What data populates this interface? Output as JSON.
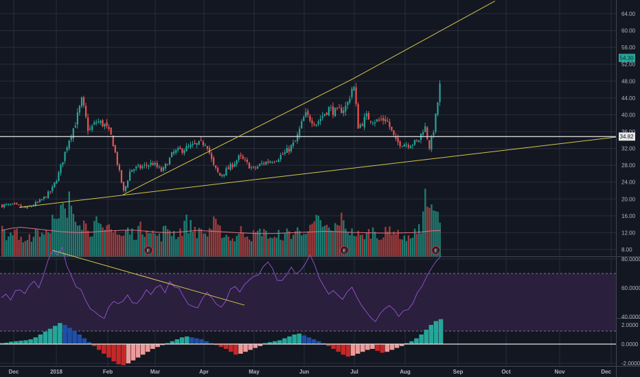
{
  "chart_data": [
    {
      "type": "candlestick",
      "pane": "price",
      "ylim": [
        6,
        68
      ],
      "y_ticks": [
        8,
        12,
        16,
        20,
        24,
        28,
        32,
        36,
        40,
        44,
        48,
        52,
        56,
        60,
        64
      ],
      "y_tick_labels": [
        "8.00",
        "12.00",
        "16.00",
        "20.00",
        "24.00",
        "28.00",
        "32.00",
        "36.00",
        "40.00",
        "44.00",
        "48.00",
        "52.00",
        "56.00",
        "60.00",
        "64.00"
      ],
      "x_tick_labels": [
        "Dec",
        "2018",
        "Feb",
        "Mar",
        "Apr",
        "May",
        "Jun",
        "Jul",
        "Aug",
        "Sep",
        "Oct",
        "Nov",
        "Dec"
      ],
      "last_price_label": "54.30",
      "horizontal_level_label": "34.82",
      "horizontal_level": 34.82,
      "close_path": [
        [
          "2017-12-01",
          18.5
        ],
        [
          "2017-12-10",
          17.8
        ],
        [
          "2017-12-20",
          19.5
        ],
        [
          "2017-12-28",
          22.0
        ],
        [
          "2018-01-02",
          26.0
        ],
        [
          "2018-01-08",
          34.0
        ],
        [
          "2018-01-12",
          38.0
        ],
        [
          "2018-01-16",
          43.5
        ],
        [
          "2018-01-20",
          36.0
        ],
        [
          "2018-01-25",
          38.5
        ],
        [
          "2018-01-30",
          37.5
        ],
        [
          "2018-02-03",
          34.5
        ],
        [
          "2018-02-07",
          27.0
        ],
        [
          "2018-02-10",
          21.5
        ],
        [
          "2018-02-14",
          27.0
        ],
        [
          "2018-02-20",
          27.5
        ],
        [
          "2018-02-27",
          28.5
        ],
        [
          "2018-03-05",
          26.5
        ],
        [
          "2018-03-12",
          31.0
        ],
        [
          "2018-03-20",
          32.0
        ],
        [
          "2018-03-28",
          33.0
        ],
        [
          "2018-04-02",
          33.5
        ],
        [
          "2018-04-06",
          28.0
        ],
        [
          "2018-04-10",
          25.5
        ],
        [
          "2018-04-16",
          27.5
        ],
        [
          "2018-04-22",
          30.0
        ],
        [
          "2018-04-30",
          27.0
        ],
        [
          "2018-05-06",
          28.5
        ],
        [
          "2018-05-14",
          29.5
        ],
        [
          "2018-05-20",
          31.0
        ],
        [
          "2018-05-26",
          33.5
        ],
        [
          "2018-06-01",
          40.0
        ],
        [
          "2018-06-08",
          38.0
        ],
        [
          "2018-06-15",
          41.5
        ],
        [
          "2018-06-20",
          40.5
        ],
        [
          "2018-06-26",
          42.0
        ],
        [
          "2018-06-30",
          47.5
        ],
        [
          "2018-07-03",
          37.0
        ],
        [
          "2018-07-08",
          39.5
        ],
        [
          "2018-07-14",
          38.5
        ],
        [
          "2018-07-20",
          39.0
        ],
        [
          "2018-07-26",
          33.5
        ],
        [
          "2018-08-02",
          33.0
        ],
        [
          "2018-08-08",
          33.5
        ],
        [
          "2018-08-12",
          37.5
        ],
        [
          "2018-08-15",
          32.0
        ],
        [
          "2018-08-18",
          38.0
        ],
        [
          "2018-08-21",
          47.0
        ],
        [
          "2018-08-25",
          54.3
        ]
      ],
      "trendlines": [
        {
          "from": [
            "2018-02-10",
            21.0
          ],
          "to": [
            "2018-06-30",
            48.5
          ]
        },
        {
          "from": [
            "2017-12-05",
            18.0
          ],
          "to": [
            "2018-12-15",
            35.2
          ]
        },
        {
          "from": [
            "2018-06-30",
            48.5
          ],
          "to": [
            "2018-09-24",
            67.0
          ]
        }
      ],
      "earnings_markers": [
        "2018-02-25",
        "2018-06-25",
        "2018-08-19"
      ],
      "earnings_label": "E"
    },
    {
      "type": "bar",
      "pane": "volume",
      "series": [
        {
          "values": [
            12,
            10,
            9,
            11,
            8,
            7,
            10,
            9,
            13,
            11,
            12,
            14,
            17,
            15,
            22,
            19,
            25,
            21,
            18,
            16,
            14,
            12,
            15,
            13,
            11,
            14,
            16,
            12,
            10,
            9,
            12,
            11,
            10,
            13,
            12,
            14,
            11,
            10,
            9,
            12,
            13,
            11,
            10,
            12,
            16,
            14,
            13,
            11,
            12,
            10,
            13,
            15,
            12,
            11,
            10,
            9,
            8,
            10,
            12,
            11,
            9,
            10,
            11,
            12,
            10,
            9,
            8,
            10,
            9,
            11,
            10,
            12,
            11,
            13,
            12,
            14,
            16,
            15,
            13,
            12,
            11,
            14,
            17,
            15,
            12,
            11,
            10,
            9,
            10,
            11,
            12,
            10,
            9,
            11,
            13,
            12,
            10,
            9,
            8,
            10,
            11,
            12,
            27,
            24,
            20,
            19,
            17
          ]
        }
      ],
      "ma": [
        12,
        13,
        13.5,
        13,
        12.5,
        12,
        11.5,
        11.2,
        11,
        11.2,
        11.5,
        11.8,
        12,
        12.2,
        12,
        11.6,
        11.2,
        11,
        11.2,
        11.6,
        12,
        11.8,
        11.5,
        11.3,
        11,
        10.8,
        10.6,
        10.5,
        10.6,
        10.8,
        11,
        11.2,
        11.4,
        11.6,
        11.5,
        11.3,
        11.1,
        11,
        10.9,
        10.8,
        10.8,
        10.9,
        11,
        11.3,
        11.8,
        12
      ]
    },
    {
      "type": "line",
      "pane": "rsi",
      "ylim": [
        28,
        92
      ],
      "y_ticks": [
        40,
        60,
        80
      ],
      "y_tick_labels": [
        "40.0000",
        "60.0000",
        "80.0000"
      ],
      "band": [
        30,
        70
      ],
      "values": [
        52,
        55,
        53,
        58,
        60,
        56,
        62,
        64,
        60,
        70,
        78,
        85,
        82,
        88,
        75,
        68,
        60,
        58,
        52,
        45,
        42,
        40,
        38,
        46,
        50,
        48,
        52,
        55,
        50,
        48,
        54,
        58,
        56,
        60,
        62,
        58,
        64,
        62,
        60,
        55,
        50,
        48,
        46,
        52,
        56,
        54,
        50,
        47,
        52,
        58,
        60,
        57,
        61,
        64,
        67,
        70,
        74,
        78,
        72,
        66,
        64,
        70,
        73,
        70,
        72,
        78,
        84,
        76,
        66,
        60,
        56,
        58,
        54,
        52,
        56,
        60,
        54,
        48,
        44,
        40,
        38,
        42,
        46,
        48,
        44,
        40,
        43,
        46,
        50,
        56,
        62,
        68,
        74,
        78,
        82
      ],
      "divergence_line": {
        "from_index": 11,
        "from_value": 86,
        "to_index": 52,
        "to_value": 48
      }
    },
    {
      "type": "bar",
      "pane": "macd",
      "ylim": [
        -2.8,
        3.0
      ],
      "y_ticks": [
        -2,
        0,
        2
      ],
      "y_tick_labels": [
        "-2.0000",
        "0.0000",
        "2.0000"
      ],
      "series": [
        {
          "values": [
            0.1,
            0.15,
            0.25,
            0.3,
            0.35,
            0.4,
            0.5,
            0.7,
            1.0,
            1.3,
            1.6,
            1.9,
            2.2,
            2.0,
            1.7,
            1.4,
            1.0,
            0.6,
            0.2,
            -0.2,
            -0.6,
            -1.0,
            -1.4,
            -1.8,
            -2.1,
            -2.2,
            -2.0,
            -1.7,
            -1.4,
            -1.1,
            -0.8,
            -0.5,
            -0.3,
            -0.1,
            0.1,
            0.3,
            0.5,
            0.7,
            0.8,
            0.7,
            0.6,
            0.5,
            0.3,
            0.1,
            -0.1,
            -0.3,
            -0.5,
            -0.8,
            -1.1,
            -1.0,
            -0.8,
            -0.6,
            -0.4,
            -0.2,
            0.1,
            0.2,
            0.3,
            0.4,
            0.6,
            0.8,
            1.0,
            1.1,
            0.9,
            0.7,
            0.5,
            0.3,
            0.1,
            -0.2,
            -0.5,
            -0.8,
            -1.1,
            -1.3,
            -1.2,
            -1.0,
            -0.8,
            -0.6,
            -0.5,
            -0.7,
            -0.9,
            -0.8,
            -0.6,
            -0.4,
            -0.2,
            0.1,
            0.3,
            0.6,
            1.0,
            1.5,
            2.0,
            2.4,
            2.6
          ]
        }
      ]
    }
  ]
}
